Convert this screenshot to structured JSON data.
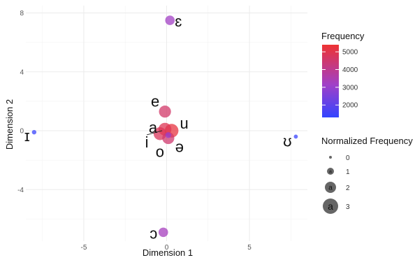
{
  "chart_data": {
    "type": "scatter",
    "title": "",
    "xlabel": "Dimension 1",
    "ylabel": "Dimension 2",
    "xlim": [
      -8.5,
      8.5
    ],
    "ylim": [
      -7.5,
      8.5
    ],
    "xticks": [
      -5,
      0,
      5
    ],
    "yticks": [
      -4,
      0,
      4,
      8
    ],
    "grid": true,
    "points": [
      {
        "label": "ɛ",
        "x": 0.2,
        "y": 7.5,
        "frequency": 3200,
        "normalized_frequency": 1.6
      },
      {
        "label": "e",
        "x": -0.1,
        "y": 1.3,
        "frequency": 4600,
        "normalized_frequency": 2.2
      },
      {
        "label": "a",
        "x": -0.4,
        "y": -0.2,
        "frequency": 4800,
        "normalized_frequency": 2.4
      },
      {
        "label": "u",
        "x": 0.3,
        "y": 0.0,
        "frequency": 5200,
        "normalized_frequency": 2.6
      },
      {
        "label": "i",
        "x": -0.1,
        "y": 0.1,
        "frequency": 4900,
        "normalized_frequency": 2.4
      },
      {
        "label": "o",
        "x": 0.1,
        "y": -0.5,
        "frequency": 4500,
        "normalized_frequency": 2.2
      },
      {
        "label": "ə",
        "x": 0.1,
        "y": -0.3,
        "frequency": 3000,
        "normalized_frequency": 0.7
      },
      {
        "label": "ɔ",
        "x": -0.2,
        "y": -6.9,
        "frequency": 3300,
        "normalized_frequency": 1.6
      },
      {
        "label": "ɪ",
        "x": -8.0,
        "y": -0.1,
        "frequency": 1400,
        "normalized_frequency": 0.4
      },
      {
        "label": "ʊ",
        "x": 7.8,
        "y": -0.4,
        "frequency": 1400,
        "normalized_frequency": 0.3
      }
    ],
    "label_offsets": {
      "note": "label placement only"
    },
    "color_legend": {
      "title": "Frequency",
      "ticks": [
        2000,
        3000,
        4000,
        5000
      ],
      "range": [
        1300,
        5400
      ],
      "low_color": "#3344ff",
      "high_color": "#ee3333"
    },
    "size_legend": {
      "title": "Normalized Frequency",
      "values": [
        0,
        1,
        2,
        3
      ],
      "glyph": "a"
    },
    "placement": {
      "legend": "right"
    }
  }
}
